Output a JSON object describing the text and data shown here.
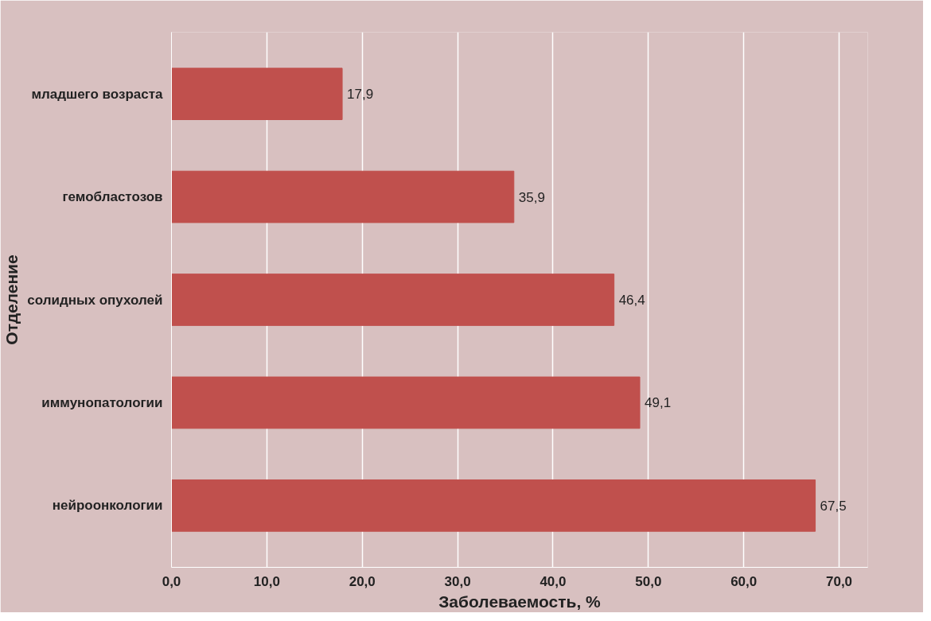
{
  "chart_data": {
    "type": "bar",
    "orientation": "horizontal",
    "xlabel": "Заболеваемость, %",
    "ylabel": "Отделение",
    "categories": [
      "младшего возраста",
      "гемобластозов",
      "солидных опухолей",
      "иммунопатологии",
      "нейроонкологии"
    ],
    "values": [
      17.9,
      35.9,
      46.4,
      49.1,
      67.5
    ],
    "value_labels": [
      "17,9",
      "35,9",
      "46,4",
      "49,1",
      "67,5"
    ],
    "color": "#c0504d",
    "xlim": [
      0,
      73
    ],
    "xticks": [
      {
        "value": 0,
        "label": "0,0"
      },
      {
        "value": 10,
        "label": "10,0"
      },
      {
        "value": 20,
        "label": "20,0"
      },
      {
        "value": 30,
        "label": "30,0"
      },
      {
        "value": 40,
        "label": "40,0"
      },
      {
        "value": 50,
        "label": "50,0"
      },
      {
        "value": 60,
        "label": "60,0"
      },
      {
        "value": 70,
        "label": "70,0"
      }
    ],
    "grid": "x"
  }
}
